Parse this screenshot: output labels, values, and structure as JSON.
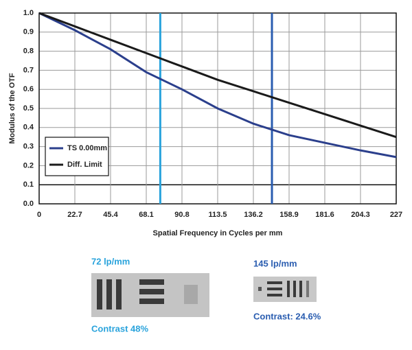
{
  "chart_data": {
    "type": "line",
    "x_label": "Spatial Frequency in Cycles per mm",
    "y_label": "Modulus of the OTF",
    "x": [
      0,
      22.7,
      45.4,
      68.1,
      90.8,
      113.5,
      136.2,
      158.9,
      181.6,
      204.3,
      227
    ],
    "series": [
      {
        "name": "TS 0.00mm",
        "color": "#2b3f8c",
        "values": [
          1.0,
          0.91,
          0.81,
          0.69,
          0.6,
          0.5,
          0.42,
          0.36,
          0.32,
          0.28,
          0.245
        ]
      },
      {
        "name": "Diff. Limit",
        "color": "#1a1a1a",
        "values": [
          1.0,
          0.93,
          0.86,
          0.79,
          0.72,
          0.65,
          0.59,
          0.53,
          0.47,
          0.41,
          0.35
        ]
      }
    ],
    "xlim": [
      0,
      227
    ],
    "ylim": [
      0,
      1
    ],
    "xticks": [
      0,
      22.7,
      45.4,
      68.1,
      90.8,
      113.5,
      136.2,
      158.9,
      181.6,
      204.3,
      227
    ],
    "yticks": [
      {
        "value": 0,
        "label": "0.0"
      },
      0.1,
      0.2,
      0.3,
      0.4,
      0.5,
      0.6,
      0.7,
      0.8,
      0.9,
      {
        "value": 1,
        "label": "1.0"
      }
    ],
    "grid": true,
    "legend": "lower left",
    "markers": [
      {
        "x": 77,
        "color": "#29a3dc"
      },
      {
        "x": 148,
        "color": "#2a5db0"
      }
    ],
    "panels": [
      {
        "label": "72 lp/mm",
        "contrast": "Contrast 48%",
        "color": "#29a3dc"
      },
      {
        "label": "145 lp/mm",
        "contrast": "Contrast: 24.6%",
        "color": "#2a5db0"
      }
    ]
  }
}
